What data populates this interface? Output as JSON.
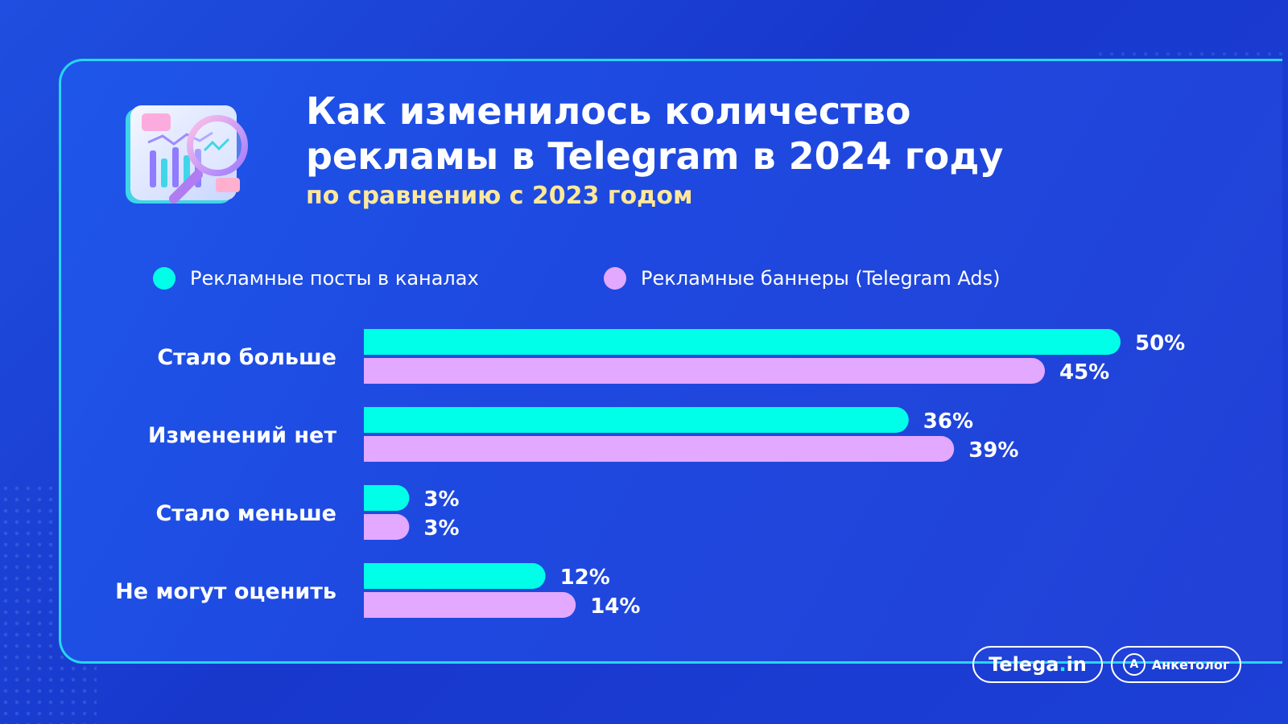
{
  "header": {
    "title_line1": "Как изменилось количество",
    "title_line2": "рекламы в Telegram в 2024 году",
    "subtitle": "по сравнению с 2023 годом"
  },
  "legend": {
    "items": [
      {
        "label": "Рекламные посты в каналах",
        "color": "#00ffe8"
      },
      {
        "label": "Рекламные баннеры (Telegram Ads)",
        "color": "#e3a8ff"
      }
    ]
  },
  "chart_data": {
    "type": "bar",
    "orientation": "horizontal",
    "categories": [
      "Стало больше",
      "Изменений нет",
      "Стало меньше",
      "Не могут оценить"
    ],
    "series": [
      {
        "name": "Рекламные посты в каналах",
        "values": [
          50,
          36,
          3,
          12
        ],
        "color": "#00ffe8"
      },
      {
        "name": "Рекламные баннеры (Telegram Ads)",
        "values": [
          45,
          39,
          3,
          14
        ],
        "color": "#e3a8ff"
      }
    ],
    "value_suffix": "%",
    "xlim": [
      0,
      50
    ],
    "grid": false,
    "legend_position": "top"
  },
  "footer": {
    "telega_text": "Telega",
    "telega_dot": ".",
    "telega_suffix": "in",
    "anketolog_text": "Анкетолог",
    "anketolog_icon_letter": "A"
  },
  "colors": {
    "background": "#1e49e0",
    "card_border": "#27d7f2",
    "subtitle": "#ffe89a"
  },
  "icons": {
    "illustration": "chart-magnifier-icon",
    "anketolog": "anketolog-logo-icon"
  }
}
